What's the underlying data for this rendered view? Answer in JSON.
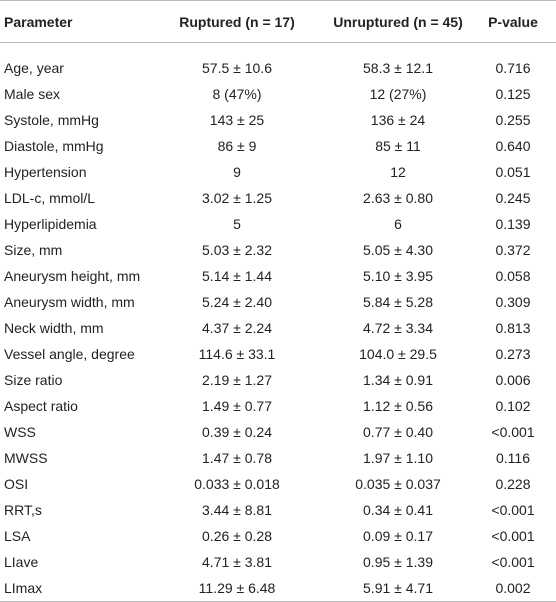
{
  "table": {
    "header": [
      "Parameter",
      "Ruptured (n = 17)",
      "Unruptured (n = 45)",
      "P-value"
    ],
    "rows": [
      [
        "Age, year",
        "57.5 ± 10.6",
        "58.3 ± 12.1",
        "0.716"
      ],
      [
        "Male sex",
        "8 (47%)",
        "12 (27%)",
        "0.125"
      ],
      [
        "Systole, mmHg",
        "143 ± 25",
        "136 ± 24",
        "0.255"
      ],
      [
        "Diastole, mmHg",
        "86 ± 9",
        "85 ± 11",
        "0.640"
      ],
      [
        "Hypertension",
        "9",
        "12",
        "0.051"
      ],
      [
        "LDL-c, mmol/L",
        "3.02 ± 1.25",
        "2.63 ± 0.80",
        "0.245"
      ],
      [
        "Hyperlipidemia",
        "5",
        "6",
        "0.139"
      ],
      [
        "Size, mm",
        "5.03 ± 2.32",
        "5.05 ± 4.30",
        "0.372"
      ],
      [
        "Aneurysm height, mm",
        "5.14 ± 1.44",
        "5.10 ± 3.95",
        "0.058"
      ],
      [
        "Aneurysm width, mm",
        "5.24 ± 2.40",
        "5.84 ± 5.28",
        "0.309"
      ],
      [
        "Neck width, mm",
        "4.37 ± 2.24",
        "4.72 ± 3.34",
        "0.813"
      ],
      [
        "Vessel angle, degree",
        "114.6 ± 33.1",
        "104.0 ± 29.5",
        "0.273"
      ],
      [
        "Size ratio",
        "2.19 ± 1.27",
        "1.34 ± 0.91",
        "0.006"
      ],
      [
        "Aspect ratio",
        "1.49 ± 0.77",
        "1.12 ± 0.56",
        "0.102"
      ],
      [
        "WSS",
        "0.39 ± 0.24",
        "0.77 ± 0.40",
        "<0.001"
      ],
      [
        "MWSS",
        "1.47 ± 0.78",
        "1.97 ± 1.10",
        "0.116"
      ],
      [
        "OSI",
        "0.033 ± 0.018",
        "0.035 ± 0.037",
        "0.228"
      ],
      [
        "RRT,s",
        "3.44 ± 8.81",
        "0.34 ± 0.41",
        "<0.001"
      ],
      [
        "LSA",
        "0.26 ± 0.28",
        "0.09 ± 0.17",
        "<0.001"
      ],
      [
        "LIave",
        "4.71 ± 3.81",
        "0.95 ± 1.39",
        "<0.001"
      ],
      [
        "LImax",
        "11.29 ± 6.48",
        "5.91 ± 4.71",
        "0.002"
      ]
    ]
  }
}
